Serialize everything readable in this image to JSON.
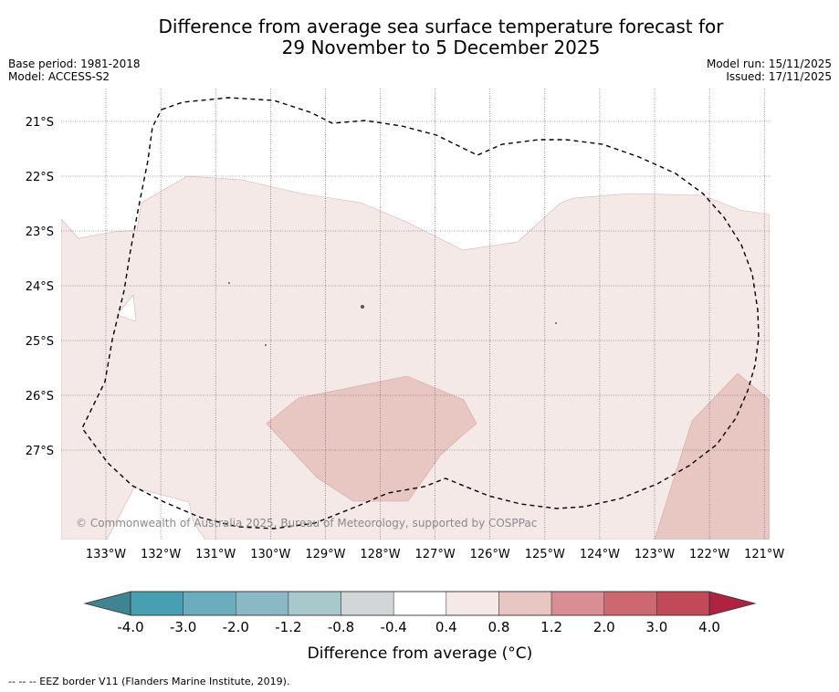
{
  "title": {
    "line1": "Difference from average sea surface temperature forecast for",
    "line2": "29 November to 5 December 2025"
  },
  "meta": {
    "base_period": "Base period: 1981-2018",
    "model": "Model: ACCESS-S2",
    "model_run": "Model run: 15/11/2025",
    "issued": "Issued: 17/11/2025"
  },
  "map": {
    "lat_labels": [
      "21°S",
      "22°S",
      "23°S",
      "24°S",
      "25°S",
      "26°S",
      "27°S"
    ],
    "lon_labels": [
      "133°W",
      "132°W",
      "131°W",
      "130°W",
      "129°W",
      "128°W",
      "127°W",
      "126°W",
      "125°W",
      "124°W",
      "123°W",
      "122°W",
      "121°W"
    ],
    "credit": "© Commonwealth of Australia 2025, Bureau of Meteorology, supported by COSPPac",
    "colors": {
      "anomaly_0_4_to_0_8": "#f5e9e8",
      "anomaly_0_8_to_1_2": "#e8c7c3",
      "eez_border": "#000000",
      "grid": "#555555"
    }
  },
  "colorbar": {
    "labels": [
      "-4.0",
      "-3.0",
      "-2.0",
      "-1.2",
      "-0.8",
      "-0.4",
      "0.4",
      "0.8",
      "1.2",
      "2.0",
      "3.0",
      "4.0"
    ],
    "colors": [
      "#46a0b1",
      "#6badbc",
      "#8ab8c4",
      "#a9c8cc",
      "#d2d6d9",
      "#ffffff",
      "#f5e9e8",
      "#e8c7c3",
      "#d98e95",
      "#cc6870",
      "#c04a58"
    ],
    "low_extension_color": "#3e8492",
    "high_extension_color": "#ad2340",
    "title": "Difference from average (°C)"
  },
  "footer": "--  --  -- EEZ border V11 (Flanders Marine Institute, 2019)."
}
